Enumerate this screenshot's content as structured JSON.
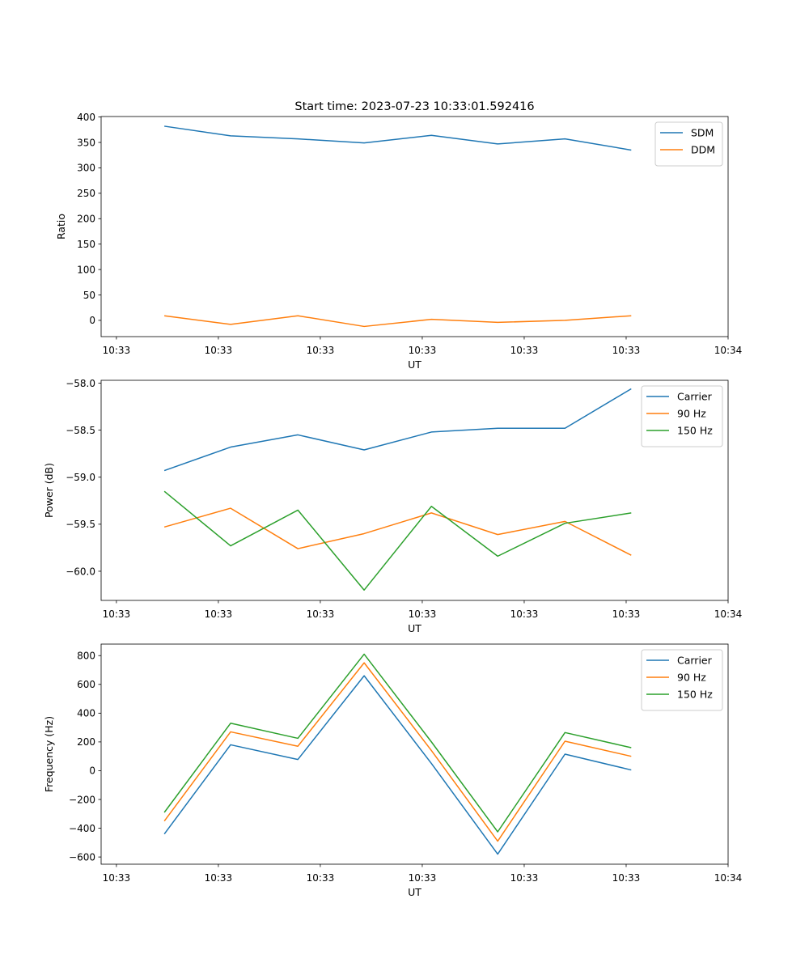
{
  "figure": {
    "title": "Start time: 2023-07-23 10:33:01.592416"
  },
  "chart_data": [
    {
      "type": "line",
      "xlabel": "UT",
      "ylabel": "Ratio",
      "x_tick_labels": [
        "10:33",
        "10:33",
        "10:33",
        "10:33",
        "10:33",
        "10:33",
        "10:34"
      ],
      "x_tick_values": [
        0,
        1,
        2,
        3,
        4,
        5,
        6
      ],
      "xlim": [
        -0.15,
        6.0
      ],
      "x": [
        0.47,
        1.12,
        1.78,
        2.43,
        3.09,
        3.74,
        4.4,
        5.05
      ],
      "ylim": [
        -32,
        401
      ],
      "y_ticks": [
        0,
        50,
        100,
        150,
        200,
        250,
        300,
        350,
        400
      ],
      "legend_position": "upper right",
      "series": [
        {
          "name": "SDM",
          "color": "#1f77b4",
          "values": [
            382,
            363,
            357,
            349,
            364,
            347,
            357,
            335
          ]
        },
        {
          "name": "DDM",
          "color": "#ff7f0e",
          "values": [
            9,
            -8,
            9,
            -12,
            2,
            -4,
            0,
            9
          ]
        }
      ]
    },
    {
      "type": "line",
      "xlabel": "UT",
      "ylabel": "Power (dB)",
      "x_tick_labels": [
        "10:33",
        "10:33",
        "10:33",
        "10:33",
        "10:33",
        "10:33",
        "10:34"
      ],
      "x_tick_values": [
        0,
        1,
        2,
        3,
        4,
        5,
        6
      ],
      "xlim": [
        -0.15,
        6.0
      ],
      "x": [
        0.47,
        1.12,
        1.78,
        2.43,
        3.09,
        3.74,
        4.4,
        5.05
      ],
      "ylim": [
        -60.31,
        -57.97
      ],
      "y_ticks": [
        -60.0,
        -59.5,
        -59.0,
        -58.5,
        -58.0
      ],
      "y_tick_labels": [
        "−60.0",
        "−59.5",
        "−59.0",
        "−58.5",
        "−58.0"
      ],
      "legend_position": "upper right",
      "series": [
        {
          "name": "Carrier",
          "color": "#1f77b4",
          "values": [
            -58.93,
            -58.68,
            -58.55,
            -58.71,
            -58.52,
            -58.48,
            -58.48,
            -58.06
          ]
        },
        {
          "name": "90 Hz",
          "color": "#ff7f0e",
          "values": [
            -59.53,
            -59.33,
            -59.76,
            -59.6,
            -59.38,
            -59.61,
            -59.47,
            -59.83
          ]
        },
        {
          "name": "150 Hz",
          "color": "#2ca02c",
          "values": [
            -59.15,
            -59.73,
            -59.35,
            -60.2,
            -59.31,
            -59.84,
            -59.49,
            -59.38
          ]
        }
      ]
    },
    {
      "type": "line",
      "xlabel": "UT",
      "ylabel": "Frequency (Hz)",
      "x_tick_labels": [
        "10:33",
        "10:33",
        "10:33",
        "10:33",
        "10:33",
        "10:33",
        "10:34"
      ],
      "x_tick_values": [
        0,
        1,
        2,
        3,
        4,
        5,
        6
      ],
      "xlim": [
        -0.15,
        6.0
      ],
      "x": [
        0.47,
        1.12,
        1.78,
        2.43,
        3.09,
        3.74,
        4.4,
        5.05
      ],
      "ylim": [
        -650,
        880
      ],
      "y_ticks": [
        -600,
        -400,
        -200,
        0,
        200,
        400,
        600,
        800
      ],
      "y_tick_labels": [
        "−600",
        "−400",
        "−200",
        "0",
        "200",
        "400",
        "600",
        "800"
      ],
      "legend_position": "upper right",
      "series": [
        {
          "name": "Carrier",
          "color": "#1f77b4",
          "values": [
            -440,
            180,
            78,
            660,
            50,
            -580,
            115,
            5
          ]
        },
        {
          "name": "90 Hz",
          "color": "#ff7f0e",
          "values": [
            -350,
            270,
            170,
            750,
            140,
            -490,
            205,
            100
          ]
        },
        {
          "name": "150 Hz",
          "color": "#2ca02c",
          "values": [
            -290,
            330,
            225,
            810,
            200,
            -425,
            265,
            160
          ]
        }
      ]
    }
  ]
}
